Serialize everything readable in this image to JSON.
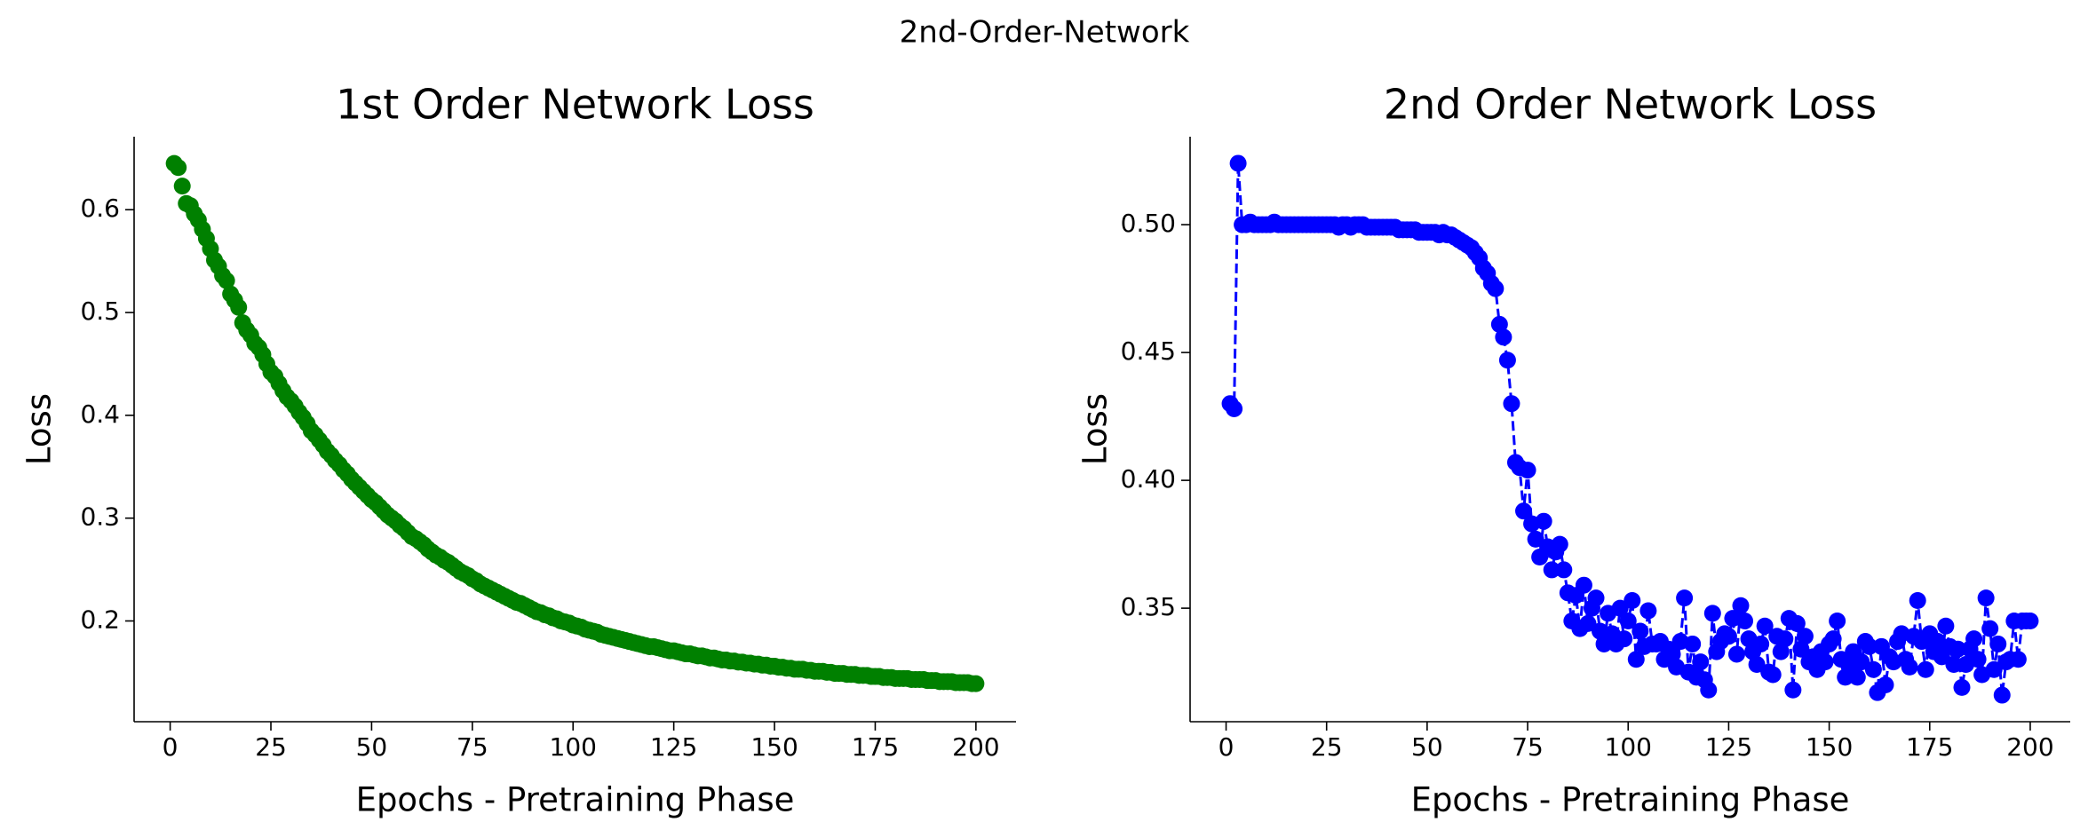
{
  "suptitle": "2nd-Order-Network",
  "chart_data": [
    {
      "type": "scatter",
      "title": "1st Order Network Loss",
      "xlabel": "Epochs - Pretraining Phase",
      "ylabel": "Loss",
      "xlim": [
        -8.95,
        209.95
      ],
      "xticks": [
        0,
        25,
        50,
        75,
        100,
        125,
        150,
        175,
        200
      ],
      "ylim": [
        0.102,
        0.671
      ],
      "yticks": [
        0.2,
        0.3,
        0.4,
        0.5,
        0.6
      ],
      "x": [
        1,
        2,
        3,
        4,
        5,
        6,
        7,
        8,
        9,
        10,
        11,
        12,
        13,
        14,
        15,
        16,
        17,
        18,
        19,
        20,
        21,
        22,
        23,
        24,
        25,
        26,
        27,
        28,
        29,
        30,
        31,
        32,
        33,
        34,
        35,
        36,
        37,
        38,
        39,
        40,
        41,
        42,
        43,
        44,
        45,
        46,
        47,
        48,
        49,
        50,
        51,
        52,
        53,
        54,
        55,
        56,
        57,
        58,
        59,
        60,
        61,
        62,
        63,
        64,
        65,
        66,
        67,
        68,
        69,
        70,
        71,
        72,
        73,
        74,
        75,
        76,
        77,
        78,
        79,
        80,
        81,
        82,
        83,
        84,
        85,
        86,
        87,
        88,
        89,
        90,
        91,
        92,
        93,
        94,
        95,
        96,
        97,
        98,
        99,
        100,
        101,
        102,
        103,
        104,
        105,
        106,
        107,
        108,
        109,
        110,
        111,
        112,
        113,
        114,
        115,
        116,
        117,
        118,
        119,
        120,
        121,
        122,
        123,
        124,
        125,
        126,
        127,
        128,
        129,
        130,
        131,
        132,
        133,
        134,
        135,
        136,
        137,
        138,
        139,
        140,
        141,
        142,
        143,
        144,
        145,
        146,
        147,
        148,
        149,
        150,
        151,
        152,
        153,
        154,
        155,
        156,
        157,
        158,
        159,
        160,
        161,
        162,
        163,
        164,
        165,
        166,
        167,
        168,
        169,
        170,
        171,
        172,
        173,
        174,
        175,
        176,
        177,
        178,
        179,
        180,
        181,
        182,
        183,
        184,
        185,
        186,
        187,
        188,
        189,
        190,
        191,
        192,
        193,
        194,
        195,
        196,
        197,
        198,
        199,
        200
      ],
      "series": [
        {
          "color": "#008000",
          "values": [
            0.645,
            0.641,
            0.623,
            0.606,
            0.604,
            0.596,
            0.59,
            0.581,
            0.572,
            0.562,
            0.551,
            0.545,
            0.536,
            0.531,
            0.518,
            0.512,
            0.505,
            0.49,
            0.483,
            0.478,
            0.47,
            0.466,
            0.459,
            0.45,
            0.442,
            0.438,
            0.431,
            0.424,
            0.418,
            0.414,
            0.409,
            0.403,
            0.398,
            0.392,
            0.385,
            0.381,
            0.376,
            0.371,
            0.365,
            0.361,
            0.356,
            0.352,
            0.347,
            0.343,
            0.338,
            0.334,
            0.33,
            0.326,
            0.322,
            0.318,
            0.315,
            0.311,
            0.307,
            0.303,
            0.3,
            0.297,
            0.293,
            0.29,
            0.286,
            0.282,
            0.28,
            0.277,
            0.274,
            0.27,
            0.267,
            0.264,
            0.262,
            0.259,
            0.257,
            0.254,
            0.251,
            0.248,
            0.246,
            0.244,
            0.241,
            0.239,
            0.236,
            0.234,
            0.232,
            0.23,
            0.228,
            0.226,
            0.224,
            0.222,
            0.22,
            0.218,
            0.217,
            0.215,
            0.213,
            0.211,
            0.209,
            0.208,
            0.206,
            0.205,
            0.203,
            0.202,
            0.2,
            0.199,
            0.198,
            0.196,
            0.195,
            0.194,
            0.192,
            0.191,
            0.19,
            0.189,
            0.187,
            0.186,
            0.185,
            0.184,
            0.183,
            0.182,
            0.181,
            0.18,
            0.179,
            0.178,
            0.177,
            0.176,
            0.175,
            0.175,
            0.174,
            0.173,
            0.172,
            0.171,
            0.171,
            0.17,
            0.169,
            0.168,
            0.168,
            0.167,
            0.166,
            0.166,
            0.165,
            0.164,
            0.164,
            0.163,
            0.162,
            0.162,
            0.161,
            0.161,
            0.16,
            0.16,
            0.159,
            0.159,
            0.158,
            0.158,
            0.157,
            0.157,
            0.156,
            0.156,
            0.155,
            0.155,
            0.154,
            0.154,
            0.153,
            0.153,
            0.153,
            0.152,
            0.152,
            0.151,
            0.151,
            0.151,
            0.15,
            0.15,
            0.149,
            0.149,
            0.149,
            0.148,
            0.148,
            0.148,
            0.147,
            0.147,
            0.147,
            0.146,
            0.146,
            0.146,
            0.145,
            0.145,
            0.145,
            0.144,
            0.144,
            0.144,
            0.144,
            0.143,
            0.143,
            0.143,
            0.143,
            0.142,
            0.142,
            0.142,
            0.141,
            0.141,
            0.141,
            0.141,
            0.14,
            0.14,
            0.14,
            0.14,
            0.139,
            0.139
          ]
        }
      ]
    },
    {
      "type": "line",
      "title": "2nd Order Network Loss",
      "xlabel": "Epochs - Pretraining Phase",
      "ylabel": "Loss",
      "linestyle": "dashed",
      "xlim": [
        -8.95,
        209.95
      ],
      "xticks": [
        0,
        25,
        50,
        75,
        100,
        125,
        150,
        175,
        200
      ],
      "ylim": [
        0.3056,
        0.5344
      ],
      "yticks": [
        0.35,
        {
          "value": 0.4,
          "label": "0.40"
        },
        0.45,
        {
          "value": 0.5,
          "label": "0.50"
        }
      ],
      "x": [
        1,
        2,
        3,
        4,
        5,
        6,
        7,
        8,
        9,
        10,
        11,
        12,
        13,
        14,
        15,
        16,
        17,
        18,
        19,
        20,
        21,
        22,
        23,
        24,
        25,
        26,
        27,
        28,
        29,
        30,
        31,
        32,
        33,
        34,
        35,
        36,
        37,
        38,
        39,
        40,
        41,
        42,
        43,
        44,
        45,
        46,
        47,
        48,
        49,
        50,
        51,
        52,
        53,
        54,
        55,
        56,
        57,
        58,
        59,
        60,
        61,
        62,
        63,
        64,
        65,
        66,
        67,
        68,
        69,
        70,
        71,
        72,
        73,
        74,
        75,
        76,
        77,
        78,
        79,
        80,
        81,
        82,
        83,
        84,
        85,
        86,
        87,
        88,
        89,
        90,
        91,
        92,
        93,
        94,
        95,
        96,
        97,
        98,
        99,
        100,
        101,
        102,
        103,
        104,
        105,
        106,
        107,
        108,
        109,
        110,
        111,
        112,
        113,
        114,
        115,
        116,
        117,
        118,
        119,
        120,
        121,
        122,
        123,
        124,
        125,
        126,
        127,
        128,
        129,
        130,
        131,
        132,
        133,
        134,
        135,
        136,
        137,
        138,
        139,
        140,
        141,
        142,
        143,
        144,
        145,
        146,
        147,
        148,
        149,
        150,
        151,
        152,
        153,
        154,
        155,
        156,
        157,
        158,
        159,
        160,
        161,
        162,
        163,
        164,
        165,
        166,
        167,
        168,
        169,
        170,
        171,
        172,
        173,
        174,
        175,
        176,
        177,
        178,
        179,
        180,
        181,
        182,
        183,
        184,
        185,
        186,
        187,
        188,
        189,
        190,
        191,
        192,
        193,
        194,
        195,
        196,
        197,
        198,
        199,
        200
      ],
      "series": [
        {
          "color": "#0000ff",
          "values": [
            0.43,
            0.428,
            0.524,
            0.5,
            0.5,
            0.501,
            0.5,
            0.5,
            0.5,
            0.5,
            0.5,
            0.501,
            0.5,
            0.5,
            0.5,
            0.5,
            0.5,
            0.5,
            0.5,
            0.5,
            0.5,
            0.5,
            0.5,
            0.5,
            0.5,
            0.5,
            0.5,
            0.499,
            0.5,
            0.5,
            0.499,
            0.5,
            0.5,
            0.5,
            0.499,
            0.499,
            0.499,
            0.499,
            0.499,
            0.499,
            0.499,
            0.499,
            0.498,
            0.498,
            0.498,
            0.498,
            0.498,
            0.497,
            0.497,
            0.497,
            0.497,
            0.497,
            0.496,
            0.497,
            0.496,
            0.496,
            0.495,
            0.494,
            0.493,
            0.492,
            0.491,
            0.489,
            0.487,
            0.483,
            0.481,
            0.477,
            0.475,
            0.461,
            0.456,
            0.447,
            0.43,
            0.407,
            0.405,
            0.388,
            0.404,
            0.383,
            0.377,
            0.37,
            0.384,
            0.374,
            0.365,
            0.372,
            0.375,
            0.365,
            0.356,
            0.345,
            0.355,
            0.342,
            0.359,
            0.344,
            0.35,
            0.354,
            0.341,
            0.336,
            0.348,
            0.34,
            0.336,
            0.35,
            0.338,
            0.345,
            0.353,
            0.33,
            0.341,
            0.335,
            0.349,
            0.336,
            0.336,
            0.337,
            0.33,
            0.334,
            0.332,
            0.327,
            0.337,
            0.354,
            0.325,
            0.336,
            0.323,
            0.329,
            0.322,
            0.318,
            0.348,
            0.333,
            0.337,
            0.34,
            0.339,
            0.346,
            0.332,
            0.351,
            0.345,
            0.338,
            0.333,
            0.328,
            0.336,
            0.343,
            0.325,
            0.324,
            0.339,
            0.333,
            0.338,
            0.346,
            0.318,
            0.344,
            0.334,
            0.339,
            0.329,
            0.331,
            0.326,
            0.333,
            0.329,
            0.336,
            0.338,
            0.345,
            0.33,
            0.323,
            0.327,
            0.333,
            0.323,
            0.329,
            0.337,
            0.335,
            0.326,
            0.317,
            0.335,
            0.32,
            0.331,
            0.329,
            0.337,
            0.34,
            0.33,
            0.327,
            0.339,
            0.353,
            0.337,
            0.326,
            0.34,
            0.333,
            0.337,
            0.331,
            0.343,
            0.335,
            0.328,
            0.334,
            0.319,
            0.328,
            0.334,
            0.338,
            0.33,
            0.324,
            0.354,
            0.342,
            0.326,
            0.336,
            0.316,
            0.329,
            0.33,
            0.345,
            0.33,
            0.345,
            0.345,
            0.345
          ]
        }
      ]
    }
  ]
}
